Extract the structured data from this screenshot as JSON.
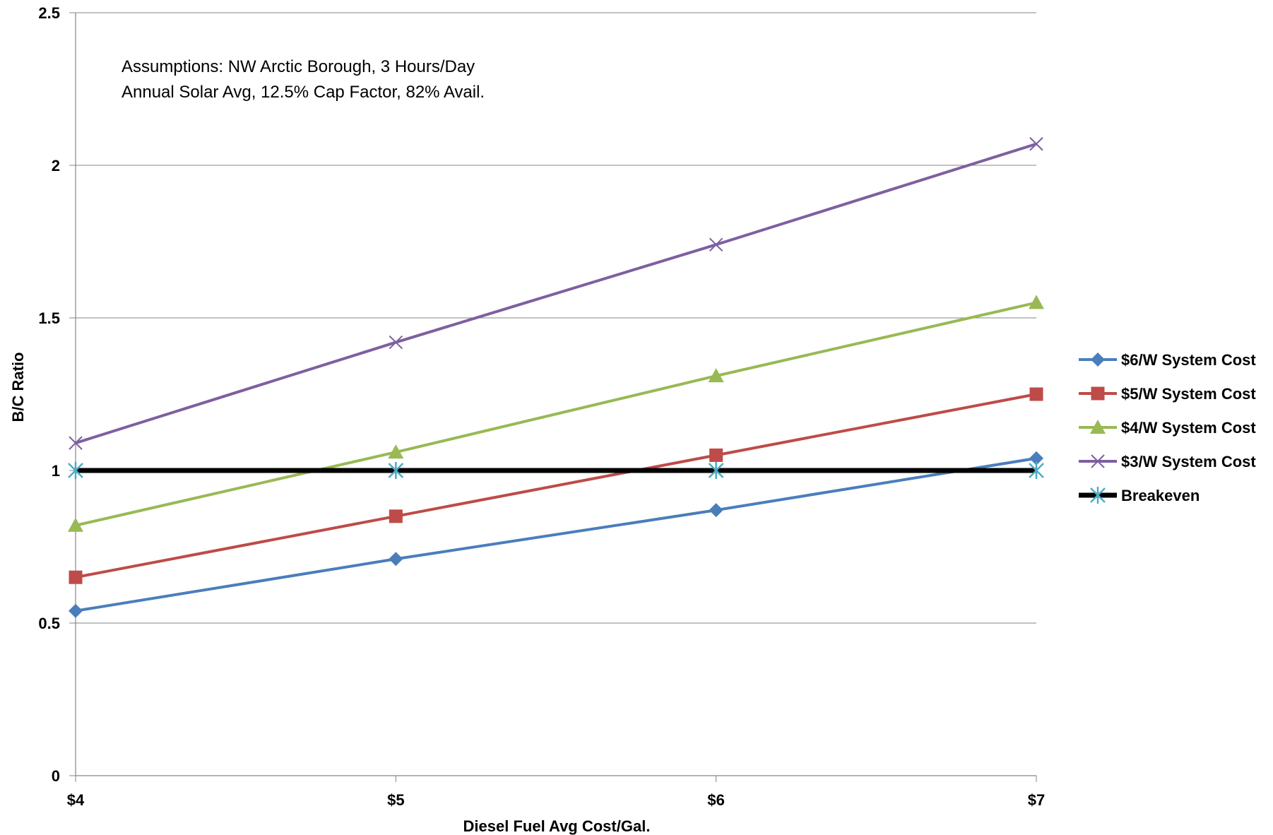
{
  "chart_data": {
    "type": "line",
    "categories": [
      "$4",
      "$5",
      "$6",
      "$7"
    ],
    "xlabel": "Diesel Fuel Avg Cost/Gal.",
    "ylabel": "B/C Ratio",
    "ylim": [
      0,
      2.5
    ],
    "yticks": [
      "0",
      "0.5",
      "1",
      "1.5",
      "2",
      "2.5"
    ],
    "grid": "horizontal",
    "legend": "right",
    "annotation": [
      "Assumptions: NW Arctic Borough, 3 Hours/Day",
      "Annual Solar Avg, 12.5% Cap Factor, 82% Avail."
    ],
    "series": [
      {
        "name": "$6/W System Cost",
        "values": [
          0.54,
          0.71,
          0.87,
          1.04
        ],
        "color": "#4a7ebb",
        "marker": "diamond"
      },
      {
        "name": "$5/W System Cost",
        "values": [
          0.65,
          0.85,
          1.05,
          1.25
        ],
        "color": "#be4b48",
        "marker": "square"
      },
      {
        "name": "$4/W System Cost",
        "values": [
          0.82,
          1.06,
          1.31,
          1.55
        ],
        "color": "#98b954",
        "marker": "triangle"
      },
      {
        "name": "$3/W System Cost",
        "values": [
          1.09,
          1.42,
          1.74,
          2.07
        ],
        "color": "#7d60a0",
        "marker": "x"
      },
      {
        "name": "Breakeven",
        "values": [
          1,
          1,
          1,
          1
        ],
        "color": "#000000",
        "marker": "star",
        "marker_color": "#4bacc6"
      }
    ]
  }
}
